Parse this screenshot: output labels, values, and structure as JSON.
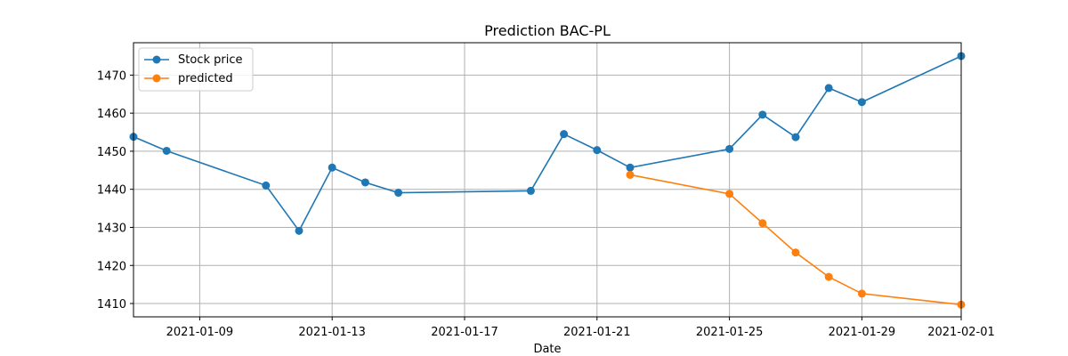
{
  "chart_data": {
    "type": "line",
    "title": "Prediction BAC-PL",
    "xlabel": "Date",
    "ylabel": "",
    "x_type": "date",
    "xlim": [
      "2021-01-07",
      "2021-02-01"
    ],
    "ylim": [
      1406.5,
      1478.5
    ],
    "grid": true,
    "legend_position": "top-left",
    "x_ticks": [
      "2021-01-09",
      "2021-01-13",
      "2021-01-17",
      "2021-01-21",
      "2021-01-25",
      "2021-01-29",
      "2021-02-01"
    ],
    "y_ticks": [
      1410,
      1420,
      1430,
      1440,
      1450,
      1460,
      1470
    ],
    "series": [
      {
        "name": "Stock price",
        "color": "#1f77b4",
        "x": [
          "2021-01-07",
          "2021-01-08",
          "2021-01-11",
          "2021-01-12",
          "2021-01-13",
          "2021-01-14",
          "2021-01-15",
          "2021-01-19",
          "2021-01-20",
          "2021-01-21",
          "2021-01-22",
          "2021-01-25",
          "2021-01-26",
          "2021-01-27",
          "2021-01-28",
          "2021-01-29",
          "2021-02-01"
        ],
        "y": [
          1453.8,
          1450.1,
          1441.0,
          1429.1,
          1445.7,
          1441.8,
          1439.1,
          1439.6,
          1454.5,
          1450.3,
          1445.7,
          1450.6,
          1459.6,
          1453.7,
          1466.6,
          1462.9,
          1475.0
        ]
      },
      {
        "name": "predicted",
        "color": "#ff7f0e",
        "x": [
          "2021-01-22",
          "2021-01-25",
          "2021-01-26",
          "2021-01-27",
          "2021-01-28",
          "2021-01-29",
          "2021-02-01"
        ],
        "y": [
          1443.8,
          1438.8,
          1431.1,
          1423.4,
          1417.0,
          1412.6,
          1409.7
        ]
      }
    ]
  }
}
